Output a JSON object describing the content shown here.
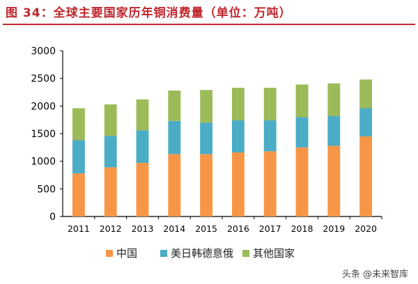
{
  "title": "图 34：全球主要国家历年铜消费量（单位：万吨）",
  "watermark": "头条 @未来智库",
  "chart_data": {
    "type": "bar",
    "stacked": true,
    "title": "图 34：全球主要国家历年铜消费量（单位：万吨）",
    "categories": [
      "2011",
      "2012",
      "2013",
      "2014",
      "2015",
      "2016",
      "2017",
      "2018",
      "2019",
      "2020"
    ],
    "series": [
      {
        "name": "中国",
        "color": "#f79646",
        "values": [
          780,
          890,
          970,
          1130,
          1130,
          1160,
          1180,
          1250,
          1280,
          1450
        ]
      },
      {
        "name": "美日韩德意俄",
        "color": "#4bacc6",
        "values": [
          600,
          570,
          590,
          600,
          570,
          580,
          560,
          550,
          540,
          510
        ]
      },
      {
        "name": "其他国家",
        "color": "#9bbb59",
        "values": [
          580,
          570,
          560,
          550,
          590,
          590,
          590,
          590,
          590,
          520
        ]
      }
    ],
    "ylim": [
      0,
      3000
    ],
    "yticks": [
      "0",
      "500",
      "1000",
      "1500",
      "2000",
      "2500",
      "3000"
    ],
    "grid": false,
    "legend": "bottom"
  }
}
